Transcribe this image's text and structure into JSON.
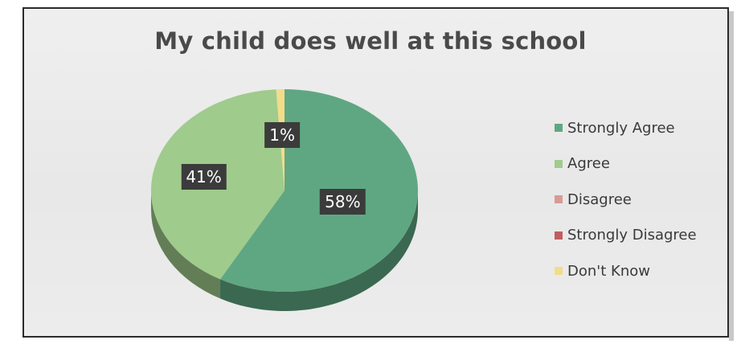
{
  "chart_data": {
    "type": "pie",
    "title": "My child does well at this school",
    "slices": [
      {
        "name": "Strongly Agree",
        "value": 58,
        "label": "58%",
        "color": "#5fa782"
      },
      {
        "name": "Agree",
        "value": 41,
        "label": "41%",
        "color": "#9fcb8c"
      },
      {
        "name": "Disagree",
        "value": 0,
        "label": "",
        "color": "#d99a94"
      },
      {
        "name": "Strongly Disagree",
        "value": 0,
        "label": "",
        "color": "#c25d5d"
      },
      {
        "name": "Don't Know",
        "value": 1,
        "label": "1%",
        "color": "#f2dc8a"
      }
    ],
    "legend_position": "right"
  }
}
